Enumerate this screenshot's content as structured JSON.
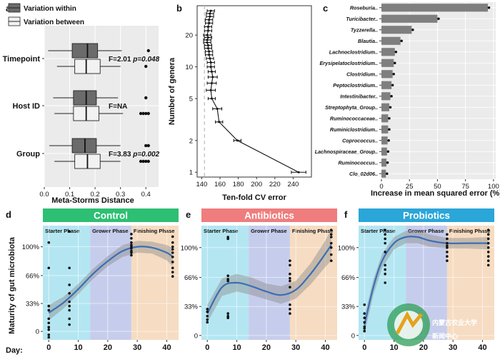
{
  "figure_labels": [
    "a",
    "b",
    "c",
    "d",
    "e",
    "f"
  ],
  "watermark": {
    "line1": "内蒙古农业大学",
    "line2": "新闻中心"
  },
  "chart_data": [
    {
      "id": "a",
      "type": "box",
      "xlabel": "Meta-Storms Distance",
      "xlim": [
        0,
        0.45
      ],
      "xticks": [
        "0.0",
        "0.1",
        "0.2",
        "0.3",
        "0.4"
      ],
      "xtick_values": [
        0,
        0.1,
        0.2,
        0.3,
        0.4
      ],
      "legend": [
        {
          "label": "Variation within",
          "color": "#6b6b6b"
        },
        {
          "label": "Variation between",
          "color": "#f2f2f2"
        }
      ],
      "groups": [
        {
          "name": "Timepoint",
          "stat": "F=2.01 p=0.048",
          "stat_f": "F=2.01",
          "stat_p": "p=0.048",
          "within": {
            "min": 0.015,
            "q1": 0.11,
            "median": 0.17,
            "q3": 0.21,
            "max": 0.305,
            "outliers": [
              0.41
            ]
          },
          "between": {
            "min": 0.05,
            "q1": 0.12,
            "median": 0.165,
            "q3": 0.22,
            "max": 0.3,
            "outliers": [
              0.4
            ]
          }
        },
        {
          "name": "Host ID",
          "stat": "F=NA",
          "stat_f": "F=NA",
          "stat_p": "",
          "within": {
            "min": 0.035,
            "q1": 0.115,
            "median": 0.165,
            "q3": 0.205,
            "max": 0.29,
            "outliers": [
              0.4
            ]
          },
          "between": {
            "min": 0.04,
            "q1": 0.115,
            "median": 0.165,
            "q3": 0.215,
            "max": 0.31,
            "outliers": [
              0.38,
              0.39,
              0.4,
              0.41
            ]
          }
        },
        {
          "name": "Group",
          "stat": "F=3.83 p=0.002",
          "stat_f": "F=3.83",
          "stat_p": "p=0.002",
          "within": {
            "min": 0.02,
            "q1": 0.11,
            "median": 0.16,
            "q3": 0.205,
            "max": 0.3,
            "outliers": [
              0.4,
              0.41
            ]
          },
          "between": {
            "min": 0.04,
            "q1": 0.12,
            "median": 0.17,
            "q3": 0.22,
            "max": 0.3,
            "outliers": [
              0.38,
              0.39,
              0.4,
              0.41
            ]
          }
        }
      ]
    },
    {
      "id": "b",
      "type": "line",
      "xlabel": "Ten-fold CV error",
      "ylabel": "Number of genera",
      "xlim": [
        135,
        260
      ],
      "xticks": [
        "140",
        "160",
        "180",
        "200",
        "220",
        "240"
      ],
      "xtick_values": [
        140,
        160,
        180,
        200,
        220,
        240
      ],
      "yscale": "log",
      "ylim": [
        0.9,
        38
      ],
      "yticks": [
        "1",
        "2",
        "5",
        "10",
        "20"
      ],
      "ytick_values": [
        1,
        2,
        5,
        10,
        20
      ],
      "dashed_x": 143,
      "points": [
        {
          "n": 1,
          "cv": 246,
          "err": 8
        },
        {
          "n": 2,
          "cv": 179,
          "err": 4
        },
        {
          "n": 3,
          "cv": 159,
          "err": 4
        },
        {
          "n": 4,
          "cv": 157,
          "err": 5
        },
        {
          "n": 5,
          "cv": 151,
          "err": 4
        },
        {
          "n": 6,
          "cv": 150,
          "err": 5
        },
        {
          "n": 7,
          "cv": 151,
          "err": 5
        },
        {
          "n": 8,
          "cv": 152,
          "err": 5
        },
        {
          "n": 9,
          "cv": 151,
          "err": 4
        },
        {
          "n": 10,
          "cv": 150,
          "err": 4
        },
        {
          "n": 11,
          "cv": 150,
          "err": 4
        },
        {
          "n": 12,
          "cv": 149,
          "err": 4
        },
        {
          "n": 13,
          "cv": 148,
          "err": 4
        },
        {
          "n": 14,
          "cv": 148,
          "err": 4
        },
        {
          "n": 15,
          "cv": 147,
          "err": 4
        },
        {
          "n": 16,
          "cv": 147,
          "err": 4
        },
        {
          "n": 17,
          "cv": 146,
          "err": 4
        },
        {
          "n": 18,
          "cv": 146,
          "err": 4
        },
        {
          "n": 19,
          "cv": 147,
          "err": 4
        },
        {
          "n": 20,
          "cv": 146,
          "err": 4
        },
        {
          "n": 22,
          "cv": 147,
          "err": 4
        },
        {
          "n": 24,
          "cv": 147,
          "err": 4
        },
        {
          "n": 26,
          "cv": 148,
          "err": 4
        },
        {
          "n": 28,
          "cv": 148,
          "err": 4
        },
        {
          "n": 30,
          "cv": 149,
          "err": 4
        },
        {
          "n": 32,
          "cv": 149,
          "err": 4
        },
        {
          "n": 34,
          "cv": 150,
          "err": 4
        }
      ]
    },
    {
      "id": "c",
      "type": "bar",
      "orientation": "horizontal",
      "xlabel": "Increase in mean squared error (%)",
      "xlim": [
        0,
        102
      ],
      "xticks": [
        "0",
        "25",
        "50",
        "75",
        "100"
      ],
      "xtick_values": [
        0,
        25,
        50,
        75,
        100
      ],
      "categories": [
        "Roseburia",
        "Turicibacter",
        "Tyzzerella",
        "Blautia",
        "Lachnoclostridium",
        "Erysipelatoclostridium",
        "Clostridium",
        "Peptoclostridium",
        "Intestinibacter",
        "Streptophyta_Group",
        "Ruminococcaceae",
        "Ruminiclostridium",
        "Coprococcus",
        "Lachnospiraceae_Group",
        "Ruminococcus",
        "Clo_02d06"
      ],
      "display_labels": [
        "Roseburia..",
        "Turicibacter..",
        "Tyzzerella..",
        "Blautia..",
        "Lachnoclostridium..",
        "Erysipelatoclostridium..",
        "Clostridium..",
        "Peptoclostridium..",
        "Intestinibacter..",
        "Streptophyta_Group..",
        "Ruminococcaceae..",
        "Ruminiclostridium..",
        "Coprococcus..",
        "Lachnospiraceae_Group..",
        "Ruminococcus..",
        "Clo_02d06.."
      ],
      "values": [
        95,
        50,
        27,
        17,
        12,
        11,
        10,
        9,
        8,
        7,
        6,
        6,
        5.5,
        5,
        4.5,
        4
      ]
    },
    {
      "id": "d",
      "type": "scatter",
      "title": "Control",
      "title_color": "#2dbf73",
      "xlabel": "Day:",
      "ylabel": "Maturity of gut microbiota",
      "xlim": [
        -2,
        44
      ],
      "xticks": [
        "0",
        "10",
        "20",
        "30",
        "40"
      ],
      "xtick_values": [
        0,
        10,
        20,
        30,
        40
      ],
      "ylim": [
        -0.1,
        1.25
      ],
      "yticks": [
        "0",
        "33%",
        "66%",
        "100%"
      ],
      "ytick_values": [
        0,
        0.33,
        0.66,
        1.0
      ],
      "phases": [
        {
          "label": "Starter Phase",
          "start": -2,
          "end": 14,
          "color": "#b4e6f2"
        },
        {
          "label": "Grower Phase",
          "start": 14,
          "end": 28,
          "color": "#c6cdec"
        },
        {
          "label": "Finishing Phase",
          "start": 28,
          "end": 44,
          "color": "#f6dcc2"
        }
      ],
      "points": [
        {
          "x": 0,
          "y": 1.05
        },
        {
          "x": 0,
          "y": 0.75
        },
        {
          "x": 0,
          "y": 0.3
        },
        {
          "x": 0,
          "y": 0.25
        },
        {
          "x": 0,
          "y": 0.15
        },
        {
          "x": 0,
          "y": 0.1
        },
        {
          "x": 0,
          "y": 0.05
        },
        {
          "x": 0,
          "y": 0.02
        },
        {
          "x": 0,
          "y": -0.04
        },
        {
          "x": 0,
          "y": -0.07
        },
        {
          "x": 7,
          "y": 1.18
        },
        {
          "x": 7,
          "y": 0.75
        },
        {
          "x": 7,
          "y": 0.55
        },
        {
          "x": 7,
          "y": 0.45
        },
        {
          "x": 7,
          "y": 0.35
        },
        {
          "x": 7,
          "y": 0.3
        },
        {
          "x": 7,
          "y": 0.25
        },
        {
          "x": 7,
          "y": 0.15
        },
        {
          "x": 7,
          "y": 0.08
        },
        {
          "x": 28,
          "y": 1.15
        },
        {
          "x": 28,
          "y": 1.1
        },
        {
          "x": 28,
          "y": 1.05
        },
        {
          "x": 28,
          "y": 1.02
        },
        {
          "x": 28,
          "y": 1.0
        },
        {
          "x": 28,
          "y": 0.98
        },
        {
          "x": 28,
          "y": 0.95
        },
        {
          "x": 28,
          "y": 0.93
        },
        {
          "x": 28,
          "y": 0.9
        },
        {
          "x": 42,
          "y": 1.12
        },
        {
          "x": 42,
          "y": 1.05
        },
        {
          "x": 42,
          "y": 1.0
        },
        {
          "x": 42,
          "y": 0.97
        },
        {
          "x": 42,
          "y": 0.93
        },
        {
          "x": 42,
          "y": 0.88
        },
        {
          "x": 42,
          "y": 0.82
        },
        {
          "x": 42,
          "y": 0.75
        },
        {
          "x": 42,
          "y": 0.7
        },
        {
          "x": 42,
          "y": 0.65
        }
      ],
      "fit": [
        {
          "x": 0,
          "y": 0.22
        },
        {
          "x": 5,
          "y": 0.34
        },
        {
          "x": 10,
          "y": 0.5
        },
        {
          "x": 15,
          "y": 0.68
        },
        {
          "x": 20,
          "y": 0.83
        },
        {
          "x": 25,
          "y": 0.95
        },
        {
          "x": 30,
          "y": 1.0
        },
        {
          "x": 35,
          "y": 0.99
        },
        {
          "x": 40,
          "y": 0.93
        },
        {
          "x": 42,
          "y": 0.88
        }
      ],
      "ci": [
        0.09,
        0.07,
        0.06,
        0.06,
        0.06,
        0.07,
        0.07,
        0.07,
        0.09,
        0.11
      ]
    },
    {
      "id": "e",
      "type": "scatter",
      "title": "Antibiotics",
      "title_color": "#f07d7d",
      "xlabel": "",
      "ylabel": "",
      "xlim": [
        -2,
        44
      ],
      "xticks": [
        "0",
        "10",
        "20",
        "30",
        "40"
      ],
      "xtick_values": [
        0,
        10,
        20,
        30,
        40
      ],
      "ylim": [
        -0.05,
        1.25
      ],
      "yticks": [
        "0",
        "33%",
        "66%",
        "100%"
      ],
      "ytick_values": [
        0,
        0.33,
        0.66,
        1.0
      ],
      "phases": [
        {
          "label": "Starter Phase",
          "start": -2,
          "end": 14,
          "color": "#b4e6f2"
        },
        {
          "label": "Grower Phase",
          "start": 14,
          "end": 28,
          "color": "#c6cdec"
        },
        {
          "label": "Finishing Phase",
          "start": 28,
          "end": 44,
          "color": "#f6dcc2"
        }
      ],
      "points": [
        {
          "x": 0,
          "y": 0.3
        },
        {
          "x": 0,
          "y": 0.27
        },
        {
          "x": 0,
          "y": 0.22
        },
        {
          "x": 0,
          "y": 0.18
        },
        {
          "x": 0,
          "y": 0.15
        },
        {
          "x": 7,
          "y": 1.12
        },
        {
          "x": 7,
          "y": 1.1
        },
        {
          "x": 7,
          "y": 0.68
        },
        {
          "x": 7,
          "y": 0.64
        },
        {
          "x": 7,
          "y": 0.62
        },
        {
          "x": 7,
          "y": 0.25
        },
        {
          "x": 7,
          "y": 0.22
        },
        {
          "x": 7,
          "y": 0.2
        },
        {
          "x": 28,
          "y": 0.85
        },
        {
          "x": 28,
          "y": 0.8
        },
        {
          "x": 28,
          "y": 0.7
        },
        {
          "x": 28,
          "y": 0.65
        },
        {
          "x": 28,
          "y": 0.62
        },
        {
          "x": 28,
          "y": 0.55
        },
        {
          "x": 28,
          "y": 0.35
        },
        {
          "x": 28,
          "y": 0.3
        },
        {
          "x": 28,
          "y": 0.25
        },
        {
          "x": 42,
          "y": 1.2
        },
        {
          "x": 42,
          "y": 1.15
        },
        {
          "x": 42,
          "y": 1.12
        },
        {
          "x": 42,
          "y": 1.05
        },
        {
          "x": 42,
          "y": 1.0
        },
        {
          "x": 42,
          "y": 0.92
        },
        {
          "x": 42,
          "y": 0.85
        }
      ],
      "fit": [
        {
          "x": 0,
          "y": 0.25
        },
        {
          "x": 5,
          "y": 0.55
        },
        {
          "x": 10,
          "y": 0.6
        },
        {
          "x": 15,
          "y": 0.56
        },
        {
          "x": 20,
          "y": 0.5
        },
        {
          "x": 25,
          "y": 0.46
        },
        {
          "x": 30,
          "y": 0.52
        },
        {
          "x": 35,
          "y": 0.7
        },
        {
          "x": 40,
          "y": 0.93
        },
        {
          "x": 42,
          "y": 1.03
        }
      ],
      "ci": [
        0.1,
        0.1,
        0.1,
        0.1,
        0.09,
        0.1,
        0.1,
        0.12,
        0.15,
        0.18
      ]
    },
    {
      "id": "f",
      "type": "scatter",
      "title": "Probiotics",
      "title_color": "#2aa6d8",
      "xlabel": "",
      "ylabel": "",
      "xlim": [
        -2,
        44
      ],
      "xticks": [
        "0",
        "10",
        "20",
        "30",
        "40"
      ],
      "xtick_values": [
        0,
        10,
        20,
        30,
        40
      ],
      "ylim": [
        -0.05,
        1.25
      ],
      "yticks": [
        "0",
        "33%",
        "66%",
        "100%"
      ],
      "ytick_values": [
        0,
        0.33,
        0.66,
        1.0
      ],
      "phases": [
        {
          "label": "Starter Phase",
          "start": -2,
          "end": 14,
          "color": "#b4e6f2"
        },
        {
          "label": "Grower Phase",
          "start": 14,
          "end": 28,
          "color": "#c6cdec"
        },
        {
          "label": "Finishing Phase",
          "start": 28,
          "end": 44,
          "color": "#f6dcc2"
        }
      ],
      "points": [
        {
          "x": 0,
          "y": 0.35
        },
        {
          "x": 0,
          "y": 0.25
        },
        {
          "x": 0,
          "y": 0.2
        },
        {
          "x": 0,
          "y": 0.15
        },
        {
          "x": 0,
          "y": 0.1
        },
        {
          "x": 0,
          "y": 0.08
        },
        {
          "x": 0,
          "y": 0.05
        },
        {
          "x": 7,
          "y": 1.2
        },
        {
          "x": 7,
          "y": 1.15
        },
        {
          "x": 7,
          "y": 1.1
        },
        {
          "x": 7,
          "y": 1.05
        },
        {
          "x": 7,
          "y": 0.95
        },
        {
          "x": 7,
          "y": 0.8
        },
        {
          "x": 7,
          "y": 0.75
        },
        {
          "x": 7,
          "y": 0.7
        },
        {
          "x": 7,
          "y": 0.6
        },
        {
          "x": 28,
          "y": 1.15
        },
        {
          "x": 28,
          "y": 1.1
        },
        {
          "x": 28,
          "y": 1.05
        },
        {
          "x": 28,
          "y": 1.02
        },
        {
          "x": 28,
          "y": 1.0
        },
        {
          "x": 28,
          "y": 0.95
        },
        {
          "x": 28,
          "y": 0.9
        },
        {
          "x": 28,
          "y": 0.85
        },
        {
          "x": 42,
          "y": 1.2
        },
        {
          "x": 42,
          "y": 1.15
        },
        {
          "x": 42,
          "y": 1.1
        },
        {
          "x": 42,
          "y": 1.05
        },
        {
          "x": 42,
          "y": 1.0
        },
        {
          "x": 42,
          "y": 0.95
        },
        {
          "x": 42,
          "y": 0.9
        },
        {
          "x": 42,
          "y": 0.85
        },
        {
          "x": 42,
          "y": 0.8
        }
      ],
      "fit": [
        {
          "x": 0,
          "y": 0.12
        },
        {
          "x": 3,
          "y": 0.55
        },
        {
          "x": 6,
          "y": 0.85
        },
        {
          "x": 10,
          "y": 1.05
        },
        {
          "x": 14,
          "y": 1.12
        },
        {
          "x": 18,
          "y": 1.12
        },
        {
          "x": 22,
          "y": 1.08
        },
        {
          "x": 28,
          "y": 1.05
        },
        {
          "x": 35,
          "y": 1.05
        },
        {
          "x": 42,
          "y": 1.05
        }
      ],
      "ci": [
        0.1,
        0.09,
        0.08,
        0.07,
        0.07,
        0.07,
        0.07,
        0.06,
        0.06,
        0.07
      ]
    }
  ]
}
